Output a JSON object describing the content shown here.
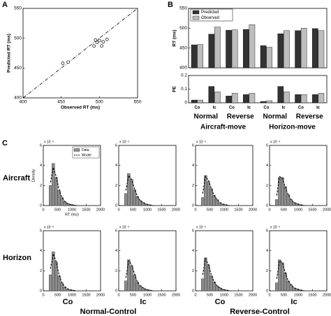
{
  "panel_labels": [
    "A",
    "B",
    "C"
  ],
  "row_labels": [
    "Aircraft",
    "Horizon"
  ],
  "col_labels": [
    "Co",
    "Ic",
    "Co",
    "Ic"
  ],
  "group_labels": [
    "Normal-Control",
    "Reverse-Control"
  ],
  "chart_data": [
    {
      "type": "scatter",
      "xlabel": "Observed RT (ms)",
      "ylabel": "Predicted RT (ms)",
      "x": [
        452,
        459,
        493,
        495,
        497,
        500,
        503,
        505,
        510
      ],
      "values": [
        458,
        460,
        487,
        497,
        493,
        496,
        487,
        494,
        498
      ],
      "xlim": [
        400,
        550
      ],
      "xticks": [
        400,
        450,
        500,
        550
      ],
      "ylim": [
        400,
        550
      ],
      "yticks": [
        400,
        450,
        500,
        550
      ]
    },
    {
      "type": "bar",
      "ylabel": "RT (ms)",
      "series": [
        {
          "name": "Predicted",
          "color": "#333333",
          "values": [
            458,
            485,
            495,
            497,
            456,
            486,
            494,
            499
          ]
        },
        {
          "name": "Observed",
          "color": "#bdbdbd",
          "values": [
            459,
            503,
            496,
            509,
            452,
            494,
            500,
            494
          ]
        }
      ],
      "ylim": [
        400,
        550
      ],
      "yticks": [
        400,
        450,
        500,
        550
      ]
    },
    {
      "type": "bar",
      "ylabel": "PE",
      "categories": [
        "Co",
        "Ic",
        "Co",
        "Ic",
        "Co",
        "Ic",
        "Co",
        "Ic"
      ],
      "groups": [
        "Normal",
        "Reverse",
        "Normal",
        "Reverse"
      ],
      "supergroups": [
        "Aircraft-move",
        "Horizon-move"
      ],
      "series": [
        {
          "color": "#333333",
          "values": [
            0.02,
            0.12,
            0.05,
            0.06,
            0.01,
            0.12,
            0.06,
            0.06
          ]
        },
        {
          "color": "#bdbdbd",
          "values": [
            0.02,
            0.08,
            0.07,
            0.07,
            0.015,
            0.08,
            0.06,
            0.07
          ]
        }
      ],
      "ylim": [
        0,
        0.2
      ],
      "yticks": [
        0,
        0.1,
        0.2
      ]
    },
    {
      "type": "histogram",
      "ylabel": "Density",
      "xlabel": "RT (ms)",
      "series_names": [
        "Data",
        "Model"
      ],
      "multiplier": "x 10⁻³",
      "bins": [
        200,
        300,
        400,
        500,
        600,
        700,
        800,
        900,
        1000,
        1100,
        1200
      ],
      "values": [
        2.0,
        4.2,
        2.8,
        1.5,
        0.8,
        0.4,
        0.2,
        0.1,
        0.05,
        0.02
      ],
      "model_x": [
        250,
        350,
        450,
        550,
        650,
        750,
        850,
        950,
        1050,
        1150
      ],
      "model": [
        2.3,
        3.8,
        2.9,
        1.6,
        0.8,
        0.4,
        0.2,
        0.1,
        0.05,
        0.02
      ],
      "xlim": [
        0,
        2000
      ],
      "xticks": [
        0,
        500,
        1000,
        1500,
        2000
      ],
      "ylim": [
        0,
        6
      ],
      "yticks": [
        0,
        2,
        4,
        6
      ]
    },
    {
      "type": "histogram",
      "multiplier": "x 10⁻³",
      "bins": [
        200,
        300,
        400,
        500,
        600,
        700,
        800,
        900,
        1000,
        1100,
        1200
      ],
      "values": [
        1.2,
        3.2,
        2.6,
        1.6,
        0.9,
        0.5,
        0.3,
        0.15,
        0.08,
        0.04
      ],
      "model_x": [
        250,
        350,
        450,
        550,
        650,
        750,
        850,
        950,
        1050,
        1150
      ],
      "model": [
        1.5,
        3.0,
        2.6,
        1.7,
        0.9,
        0.5,
        0.3,
        0.15,
        0.08,
        0.04
      ],
      "xlim": [
        0,
        2000
      ],
      "xticks": [
        0,
        500,
        1000,
        1500,
        2000
      ],
      "ylim": [
        0,
        6
      ],
      "yticks": [
        0,
        2,
        4,
        6
      ]
    },
    {
      "type": "histogram",
      "multiplier": "x 10⁻³",
      "bins": [
        200,
        300,
        400,
        500,
        600,
        700,
        800,
        900,
        1000,
        1100,
        1200
      ],
      "values": [
        0.8,
        3.0,
        2.4,
        1.7,
        1.0,
        0.6,
        0.3,
        0.15,
        0.08,
        0.04
      ],
      "model_x": [
        250,
        350,
        450,
        550,
        650,
        750,
        850,
        950,
        1050,
        1150
      ],
      "model": [
        1.2,
        2.9,
        2.5,
        1.7,
        1.0,
        0.6,
        0.3,
        0.15,
        0.08,
        0.04
      ],
      "xlim": [
        0,
        2000
      ],
      "xticks": [
        0,
        500,
        1000,
        1500,
        2000
      ],
      "ylim": [
        0,
        6
      ],
      "yticks": [
        0,
        2,
        4,
        6
      ]
    },
    {
      "type": "histogram",
      "multiplier": "x 10⁻³",
      "bins": [
        200,
        300,
        400,
        500,
        600,
        700,
        800,
        900,
        1000,
        1100,
        1200
      ],
      "values": [
        0.6,
        2.8,
        2.8,
        1.9,
        1.1,
        0.6,
        0.3,
        0.2,
        0.1,
        0.05
      ],
      "model_x": [
        250,
        350,
        450,
        550,
        650,
        750,
        850,
        950,
        1050,
        1150
      ],
      "model": [
        1.0,
        2.9,
        2.7,
        1.8,
        1.1,
        0.6,
        0.3,
        0.2,
        0.1,
        0.05
      ],
      "xlim": [
        0,
        2000
      ],
      "xticks": [
        0,
        500,
        1000,
        1500,
        2000
      ],
      "ylim": [
        0,
        6
      ],
      "yticks": [
        0,
        2,
        4,
        6
      ]
    },
    {
      "type": "histogram",
      "multiplier": "x 10⁻³",
      "bins": [
        200,
        300,
        400,
        500,
        600,
        700,
        800,
        900,
        1000,
        1100,
        1200
      ],
      "values": [
        1.6,
        3.9,
        2.9,
        1.5,
        0.8,
        0.4,
        0.2,
        0.1,
        0.05,
        0.02
      ],
      "model_x": [
        250,
        350,
        450,
        550,
        650,
        750,
        850,
        950,
        1050,
        1150
      ],
      "model": [
        2.2,
        3.7,
        2.9,
        1.6,
        0.8,
        0.4,
        0.2,
        0.1,
        0.05,
        0.02
      ],
      "xlim": [
        0,
        2000
      ],
      "xticks": [
        0,
        500,
        1000,
        1500,
        2000
      ],
      "ylim": [
        0,
        6
      ],
      "yticks": [
        0,
        2,
        4,
        6
      ]
    },
    {
      "type": "histogram",
      "multiplier": "x 10⁻³",
      "bins": [
        200,
        300,
        400,
        500,
        600,
        700,
        800,
        900,
        1000,
        1100,
        1200
      ],
      "values": [
        1.0,
        3.1,
        2.5,
        1.6,
        0.9,
        0.5,
        0.3,
        0.15,
        0.08,
        0.04
      ],
      "model_x": [
        250,
        350,
        450,
        550,
        650,
        750,
        850,
        950,
        1050,
        1150
      ],
      "model": [
        1.3,
        3.0,
        2.6,
        1.7,
        0.9,
        0.5,
        0.3,
        0.15,
        0.08,
        0.04
      ],
      "xlim": [
        0,
        2000
      ],
      "xticks": [
        0,
        500,
        1000,
        1500,
        2000
      ],
      "ylim": [
        0,
        6
      ],
      "yticks": [
        0,
        2,
        4,
        6
      ]
    },
    {
      "type": "histogram",
      "multiplier": "x 10⁻³",
      "bins": [
        200,
        300,
        400,
        500,
        600,
        700,
        800,
        900,
        1000,
        1100,
        1200
      ],
      "values": [
        1.2,
        3.3,
        2.6,
        1.5,
        0.9,
        0.5,
        0.3,
        0.15,
        0.08,
        0.04
      ],
      "model_x": [
        250,
        350,
        450,
        550,
        650,
        750,
        850,
        950,
        1050,
        1150
      ],
      "model": [
        1.6,
        3.2,
        2.6,
        1.6,
        0.9,
        0.5,
        0.3,
        0.15,
        0.08,
        0.04
      ],
      "xlim": [
        0,
        2000
      ],
      "xticks": [
        0,
        500,
        1000,
        1500,
        2000
      ],
      "ylim": [
        0,
        6
      ],
      "yticks": [
        0,
        2,
        4,
        6
      ]
    },
    {
      "type": "histogram",
      "multiplier": "x 10⁻³",
      "bins": [
        200,
        300,
        400,
        500,
        600,
        700,
        800,
        900,
        1000,
        1100,
        1200
      ],
      "values": [
        0.8,
        3.1,
        2.8,
        1.8,
        1.0,
        0.6,
        0.3,
        0.2,
        0.1,
        0.05
      ],
      "model_x": [
        250,
        350,
        450,
        550,
        650,
        750,
        850,
        950,
        1050,
        1150
      ],
      "model": [
        1.2,
        3.0,
        2.8,
        1.8,
        1.0,
        0.6,
        0.3,
        0.2,
        0.1,
        0.05
      ],
      "xlim": [
        0,
        2000
      ],
      "xticks": [
        0,
        500,
        1000,
        1500,
        2000
      ],
      "ylim": [
        0,
        6
      ],
      "yticks": [
        0,
        2,
        4,
        6
      ]
    }
  ]
}
